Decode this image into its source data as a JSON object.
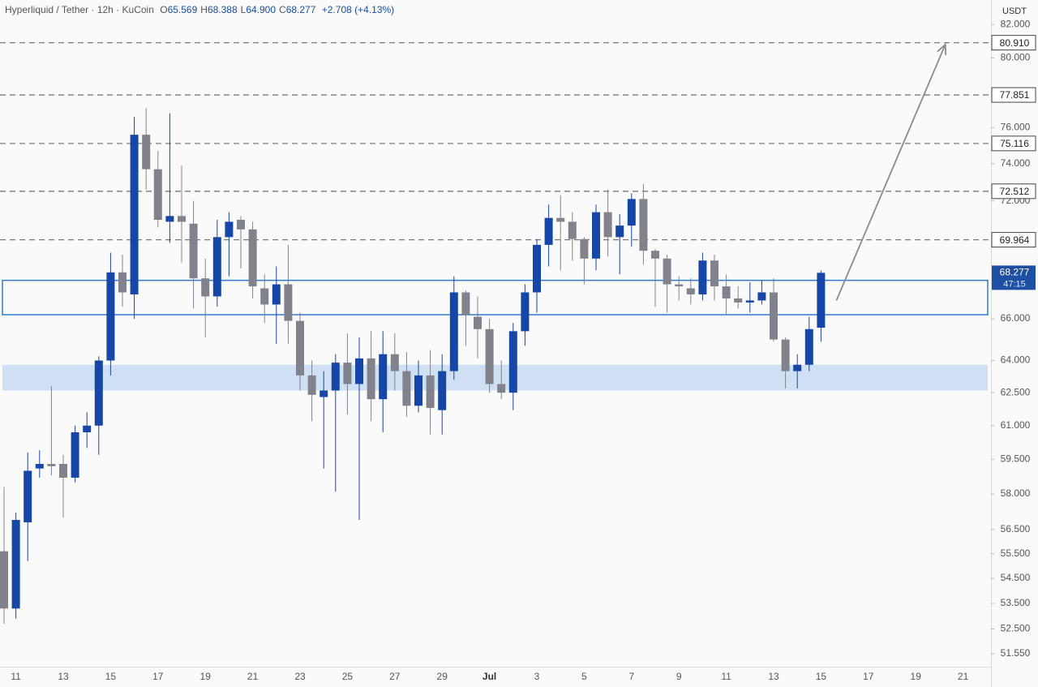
{
  "chart_data": {
    "type": "candlestick",
    "title": "Hyperliquid / Tether · 12h · KuCoin",
    "ohlc": [
      {
        "key": "O",
        "value": 65.569,
        "label": "65.569"
      },
      {
        "key": "H",
        "value": 68.388,
        "label": "68.388"
      },
      {
        "key": "L",
        "value": 64.9,
        "label": "64.900"
      },
      {
        "key": "C",
        "value": 68.277,
        "label": "68.277"
      }
    ],
    "change": {
      "value": 2.708,
      "label": "+2.708"
    },
    "change_pct": {
      "value": 4.13,
      "label": "(+4.13%)"
    },
    "y_unit": "USDT",
    "categories": [
      null,
      "11",
      null,
      null,
      null,
      "13",
      null,
      null,
      null,
      "15",
      null,
      null,
      null,
      "17",
      null,
      null,
      null,
      "19",
      null,
      null,
      null,
      "21",
      null,
      null,
      null,
      "23",
      null,
      null,
      null,
      "25",
      null,
      null,
      null,
      "27",
      null,
      null,
      null,
      "29",
      null,
      null,
      null,
      "Jul",
      null,
      null,
      null,
      "3",
      null,
      null,
      null,
      "5",
      null,
      null,
      null,
      "7",
      null,
      null,
      null,
      "9",
      null,
      null,
      null,
      "11",
      null,
      null,
      null,
      "13",
      null,
      null,
      null,
      "15",
      null,
      null,
      null,
      "17",
      null,
      null,
      null,
      "19",
      null,
      null,
      null,
      "21",
      null,
      null
    ],
    "open": [
      55.6,
      53.3,
      56.8,
      59.1,
      59.3,
      59.3,
      58.7,
      60.7,
      61.0,
      64.0,
      68.3,
      67.2,
      75.6,
      73.7,
      70.9,
      71.2,
      70.8,
      68.0,
      67.1,
      70.1,
      71.0,
      70.5,
      67.5,
      66.7,
      67.7,
      65.9,
      63.3,
      62.3,
      62.6,
      63.9,
      62.9,
      64.1,
      62.2,
      64.3,
      63.5,
      61.9,
      63.3,
      61.7,
      63.5,
      67.3,
      66.1,
      65.5,
      62.9,
      62.5,
      65.4,
      67.3,
      69.7,
      71.1,
      70.9,
      70.0,
      69.0,
      71.4,
      70.1,
      70.7,
      72.1,
      69.4,
      69.0,
      67.7,
      67.5,
      67.2,
      68.9,
      67.6,
      67.0,
      66.8,
      66.9,
      67.3,
      65.0,
      63.5,
      63.8,
      65.569,
      null,
      null,
      null,
      null,
      null,
      null,
      null,
      null,
      null,
      null,
      null,
      null,
      null,
      null
    ],
    "high": [
      58.3,
      57.2,
      59.8,
      59.9,
      62.8,
      59.7,
      61.0,
      61.6,
      64.2,
      69.3,
      69.2,
      76.6,
      77.1,
      74.7,
      76.8,
      73.9,
      72.0,
      69.0,
      71.0,
      71.4,
      71.2,
      70.9,
      68.2,
      68.6,
      69.7,
      66.3,
      64.0,
      63.5,
      64.3,
      65.3,
      65.1,
      65.4,
      65.4,
      65.3,
      64.4,
      64.0,
      64.5,
      64.3,
      68.1,
      67.4,
      67.1,
      66.0,
      64.0,
      65.8,
      67.7,
      70.0,
      71.8,
      72.3,
      71.4,
      70.1,
      71.8,
      72.6,
      71.3,
      72.4,
      72.9,
      69.5,
      69.2,
      68.1,
      68.0,
      69.3,
      69.2,
      68.2,
      67.6,
      67.8,
      67.9,
      68.0,
      65.1,
      64.3,
      66.1,
      68.388,
      null,
      null,
      null,
      null,
      null,
      null,
      null,
      null,
      null,
      null,
      null,
      null,
      null,
      null
    ],
    "low": [
      52.7,
      52.9,
      55.2,
      58.7,
      58.8,
      57.0,
      58.5,
      60.0,
      59.7,
      63.3,
      66.6,
      66.0,
      72.6,
      70.6,
      69.8,
      68.8,
      66.5,
      65.1,
      66.6,
      68.1,
      68.5,
      67.0,
      65.8,
      64.8,
      64.8,
      62.6,
      61.2,
      59.1,
      58.1,
      61.5,
      56.9,
      61.2,
      60.7,
      62.6,
      61.4,
      61.6,
      60.6,
      60.6,
      63.1,
      64.7,
      64.1,
      62.5,
      62.2,
      61.7,
      64.7,
      66.3,
      68.6,
      68.4,
      68.9,
      67.7,
      68.4,
      69.1,
      68.2,
      69.6,
      68.7,
      66.6,
      66.3,
      66.9,
      66.7,
      66.9,
      66.9,
      66.2,
      66.5,
      66.3,
      66.7,
      64.9,
      62.7,
      62.7,
      63.5,
      64.9,
      null,
      null,
      null,
      null,
      null,
      null,
      null,
      null,
      null,
      null,
      null,
      null,
      null,
      null
    ],
    "close": [
      53.3,
      56.9,
      59.0,
      59.3,
      59.2,
      58.7,
      60.7,
      61.0,
      64.0,
      68.3,
      67.3,
      75.6,
      73.7,
      71.0,
      71.2,
      70.9,
      68.0,
      67.1,
      70.1,
      70.9,
      70.5,
      67.6,
      66.7,
      67.7,
      65.9,
      63.3,
      62.4,
      62.6,
      63.9,
      62.9,
      64.1,
      62.2,
      64.3,
      63.5,
      61.9,
      63.3,
      61.8,
      63.5,
      67.3,
      66.2,
      65.5,
      62.9,
      62.5,
      65.4,
      67.3,
      69.7,
      71.1,
      70.9,
      70.0,
      69.0,
      71.4,
      70.1,
      70.7,
      72.1,
      69.4,
      69.0,
      67.7,
      67.6,
      67.2,
      68.9,
      67.6,
      67.0,
      66.8,
      66.9,
      67.3,
      65.0,
      63.5,
      63.8,
      65.5,
      68.277,
      null,
      null,
      null,
      null,
      null,
      null,
      null,
      null,
      null,
      null,
      null,
      null,
      null,
      null
    ],
    "up_color": "#1747a6",
    "down_color": "#82828c",
    "ylim": [
      51.06,
      83.5
    ],
    "log_scale": true,
    "yticks": [
      {
        "value": 82,
        "label": "82.000"
      },
      {
        "value": 80,
        "label": "80.000"
      },
      {
        "value": 76,
        "label": "76.000"
      },
      {
        "value": 74,
        "label": "74.000"
      },
      {
        "value": 72,
        "label": "72.000"
      },
      {
        "value": 66,
        "label": "66.000"
      },
      {
        "value": 64,
        "label": "64.000"
      },
      {
        "value": 62.5,
        "label": "62.500"
      },
      {
        "value": 61,
        "label": "61.000"
      },
      {
        "value": 59.5,
        "label": "59.500"
      },
      {
        "value": 58,
        "label": "58.000"
      },
      {
        "value": 56.5,
        "label": "56.500"
      },
      {
        "value": 55.5,
        "label": "55.500"
      },
      {
        "value": 54.5,
        "label": "54.500"
      },
      {
        "value": 53.5,
        "label": "53.500"
      },
      {
        "value": 52.5,
        "label": "52.500"
      },
      {
        "value": 51.55,
        "label": "51.550"
      }
    ],
    "levels": [
      {
        "value": 80.91,
        "label": "80.910"
      },
      {
        "value": 77.851,
        "label": "77.851"
      },
      {
        "value": 75.116,
        "label": "75.116"
      },
      {
        "value": 72.512,
        "label": "72.512"
      },
      {
        "value": 69.964,
        "label": "69.964"
      }
    ],
    "level_color": "#7a7a7a",
    "current_price": {
      "value": 68.277,
      "label": "68.277",
      "countdown": "47:15",
      "color": "#1f4fa3"
    },
    "zones": [
      {
        "range": [
          66.2,
          67.9
        ],
        "style": "outline",
        "color": "#2f7bd1"
      },
      {
        "range": [
          62.6,
          63.8
        ],
        "style": "fill",
        "color": "#cfe0f5"
      }
    ],
    "arrow": {
      "from": [
        70.3,
        66.9
      ],
      "to": [
        79.5,
        80.8
      ],
      "color": "#8a8a8a"
    }
  }
}
